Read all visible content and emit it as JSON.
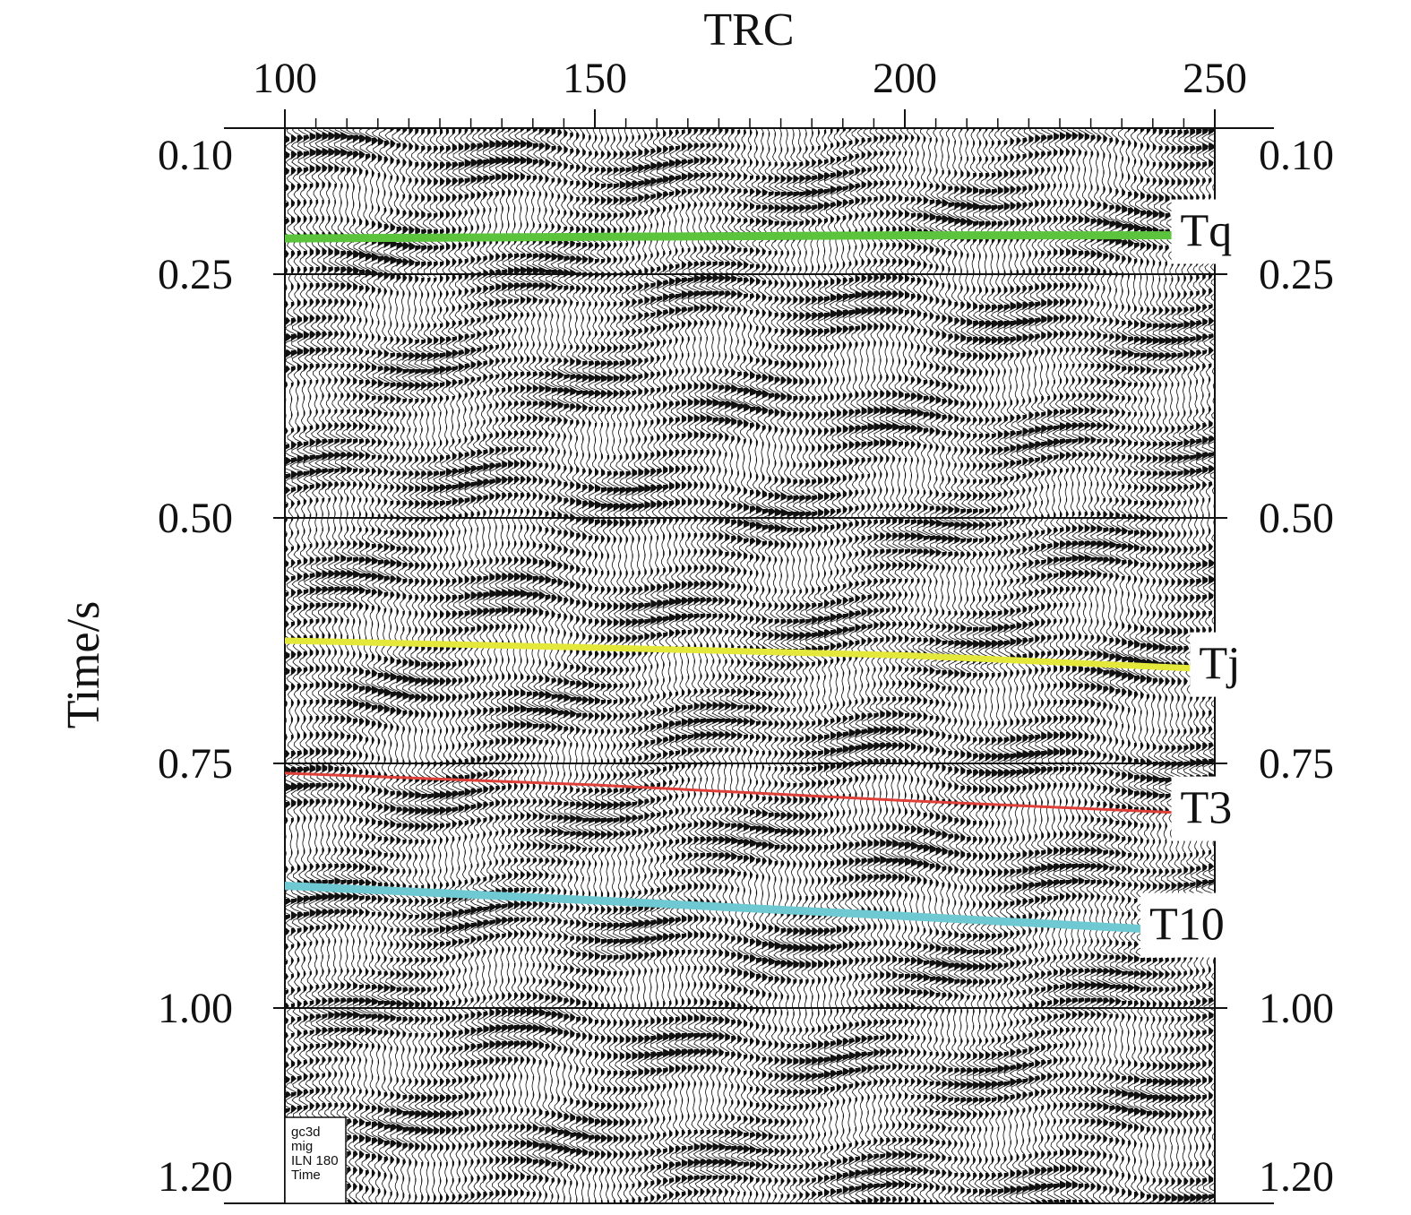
{
  "chart_data": {
    "type": "line",
    "title": "",
    "xlabel": "TRC",
    "ylabel": "Time/s",
    "x_ticks": [
      "100",
      "150",
      "200",
      "250"
    ],
    "x_tick_values": [
      100,
      150,
      200,
      250
    ],
    "y_ticks": [
      "0.10",
      "0.25",
      "0.50",
      "0.75",
      "1.00",
      "1.20"
    ],
    "y_tick_values": [
      0.1,
      0.25,
      0.5,
      0.75,
      1.0,
      1.2
    ],
    "xlim": [
      100,
      250
    ],
    "ylim": [
      1.2,
      0.1
    ],
    "y_inverted": true,
    "grid": "horizontal lines at labeled times",
    "background": "seismic wiggle-trace section",
    "series": [
      {
        "name": "Tq",
        "color": "#5cc43c",
        "x": [
          100,
          150,
          200,
          243
        ],
        "y": [
          0.205,
          0.203,
          0.201,
          0.201
        ]
      },
      {
        "name": "Tj",
        "color": "#e4e83a",
        "x": [
          100,
          150,
          200,
          246
        ],
        "y": [
          0.625,
          0.632,
          0.64,
          0.653
        ]
      },
      {
        "name": "T3",
        "color": "#e0403a",
        "x": [
          100,
          150,
          200,
          243
        ],
        "y": [
          0.76,
          0.772,
          0.788,
          0.8
        ]
      },
      {
        "name": "T10",
        "color": "#6fc9d2",
        "x": [
          100,
          150,
          200,
          238
        ],
        "y": [
          0.875,
          0.89,
          0.906,
          0.919
        ]
      }
    ]
  },
  "info_box": {
    "line1": "gc3d",
    "line2": "mig",
    "line3": "ILN 180",
    "line4": "Time"
  }
}
